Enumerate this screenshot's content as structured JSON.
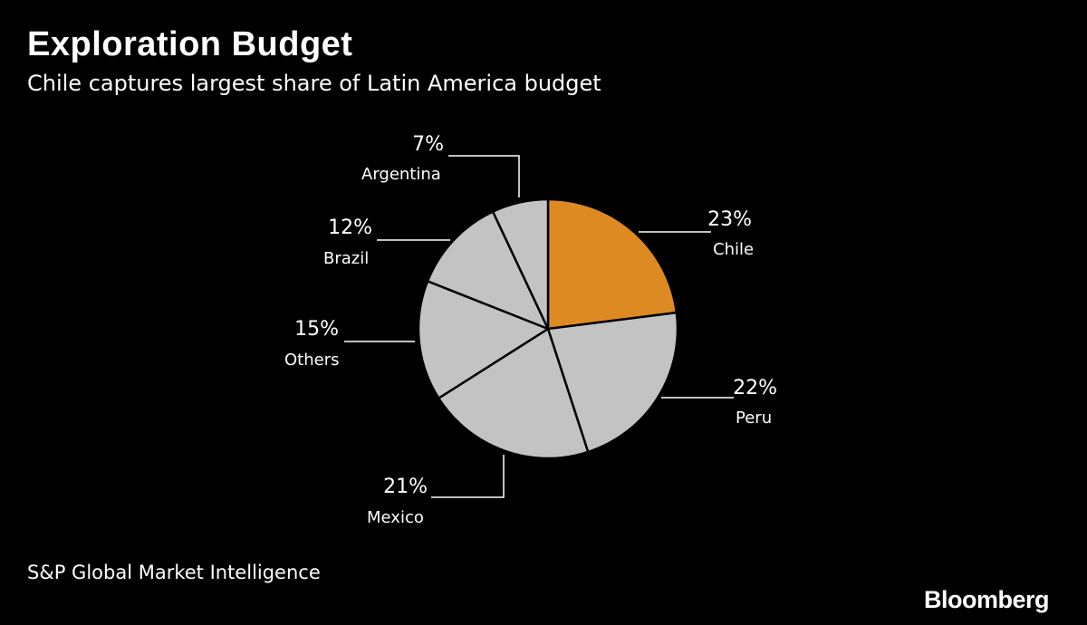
{
  "header": {
    "title": "Exploration Budget",
    "subtitle": "Chile captures largest share of Latin America budget"
  },
  "footer": {
    "source": "S&P Global Market Intelligence",
    "logo": "Bloomberg"
  },
  "colors": {
    "background": "#000000",
    "highlight": "#dd8a22",
    "slice": "#c3c3c3",
    "text": "#ffffff"
  },
  "chart_data": {
    "type": "pie",
    "title": "Exploration Budget",
    "subtitle": "Chile captures largest share of Latin America budget",
    "slices": [
      {
        "label": "Chile",
        "value": 23,
        "display": "23%",
        "color": "#dd8a22"
      },
      {
        "label": "Peru",
        "value": 22,
        "display": "22%",
        "color": "#c3c3c3"
      },
      {
        "label": "Mexico",
        "value": 21,
        "display": "21%",
        "color": "#c3c3c3"
      },
      {
        "label": "Others",
        "value": 15,
        "display": "15%",
        "color": "#c3c3c3"
      },
      {
        "label": "Brazil",
        "value": 12,
        "display": "12%",
        "color": "#c3c3c3"
      },
      {
        "label": "Argentina",
        "value": 7,
        "display": "7%",
        "color": "#c3c3c3"
      }
    ],
    "start": "12 o'clock",
    "direction": "clockwise",
    "legend": "none (labels with leader lines)"
  }
}
